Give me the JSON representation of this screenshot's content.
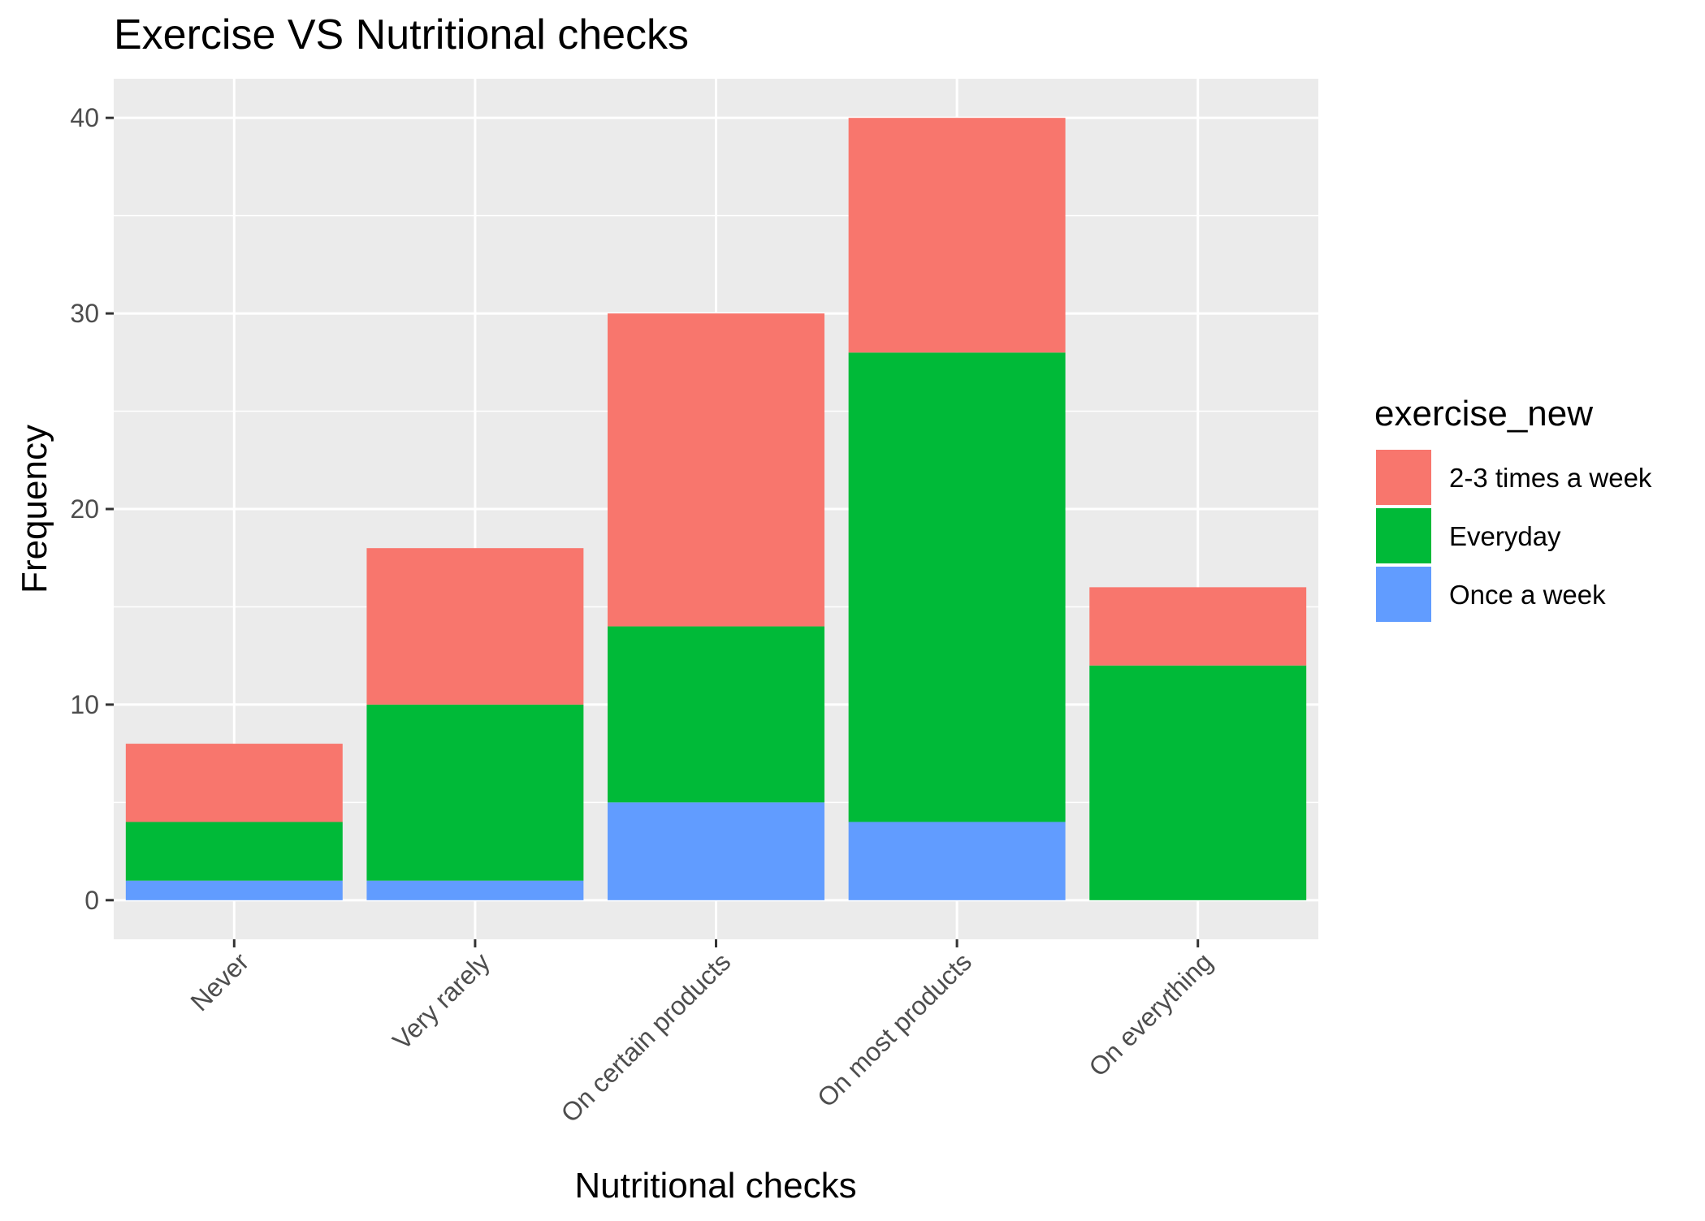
{
  "chart_data": {
    "type": "bar",
    "stacked": true,
    "title": "Exercise VS Nutritional checks",
    "xlabel": "Nutritional checks",
    "ylabel": "Frequency",
    "categories": [
      "Never",
      "Very rarely",
      "On certain products",
      "On most products",
      "On everything"
    ],
    "ylim": [
      -2,
      42
    ],
    "yticks": [
      0,
      10,
      20,
      30,
      40
    ],
    "grid": true,
    "legend": {
      "title": "exercise_new",
      "position": "right"
    },
    "stack_order": [
      "Once a week",
      "Everyday",
      "2-3 times a week"
    ],
    "series": [
      {
        "name": "2-3 times a week",
        "color": "#F8766D",
        "values": [
          4,
          8,
          16,
          12,
          4
        ]
      },
      {
        "name": "Everyday",
        "color": "#00BA38",
        "values": [
          3,
          9,
          9,
          24,
          12
        ]
      },
      {
        "name": "Once a week",
        "color": "#619CFF",
        "values": [
          1,
          1,
          5,
          4,
          0
        ]
      }
    ]
  }
}
